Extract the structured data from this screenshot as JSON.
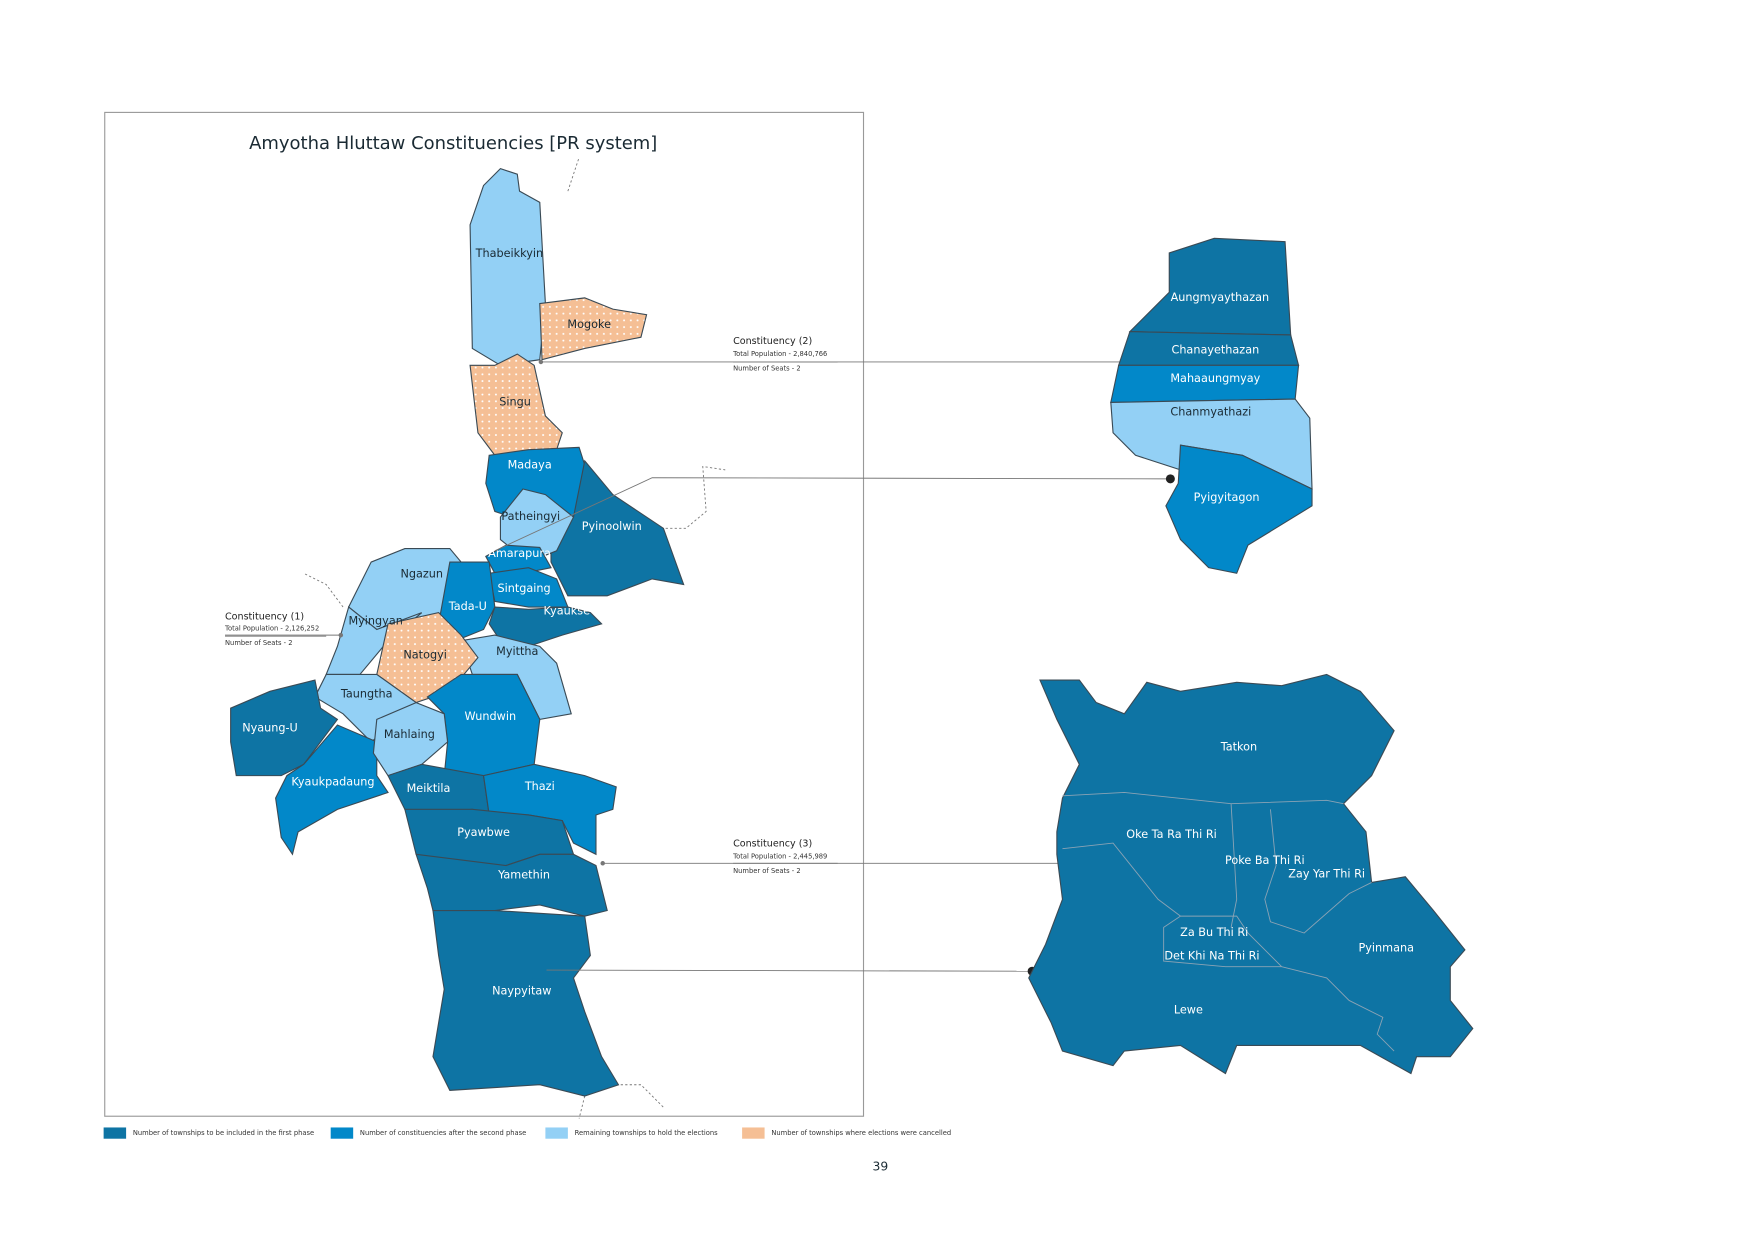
{
  "title": "Amyotha Hluttaw Constituencies [PR system]",
  "townships": [
    "Thabeikkyin",
    "Mogoke",
    "Singu",
    "Madaya",
    "Patheingyi",
    "Pyinoolwin",
    "Amarapura",
    "Sintgaing",
    "Kyaukse",
    "Ngazun",
    "Tada-U",
    "Myingyan",
    "Natogyi",
    "Myittha",
    "Taungtha",
    "Nyaung-U",
    "Mahlaing",
    "Wundwin",
    "Kyaukpadaung",
    "Meiktila",
    "Thazi",
    "Pyawbwe",
    "Yamethin",
    "Naypyitaw"
  ],
  "constituencies": [
    {
      "name": "Constituency (1)",
      "population": "Total Population - 2,126,252",
      "seats": "Number of Seats - 2"
    },
    {
      "name": "Constituency (2)",
      "population": "Total Population - 2,840,766",
      "seats": "Number of Seats - 2"
    },
    {
      "name": "Constituency (3)",
      "population": "Total Population - 2,445,989",
      "seats": "Number of Seats - 2"
    }
  ],
  "inset_north": [
    "Aungmyaythazan",
    "Chanayethazan",
    "Mahaaungmyay",
    "Chanmyathazi",
    "Pyigyitagon"
  ],
  "inset_south": [
    "Tatkon",
    "Oke Ta Ra Thi Ri",
    "Poke Ba Thi Ri",
    "Zay Yar Thi Ri",
    "Za Bu Thi Ri",
    "Det Khi Na Thi Ri",
    "Pyinmana",
    "Lewe"
  ],
  "legend": [
    "Number of townships to be included in the first phase",
    "Number of constituencies after the second phase",
    "Remaining townships to hold the elections",
    "Number of townships where elections were cancelled"
  ],
  "page_number": "39"
}
